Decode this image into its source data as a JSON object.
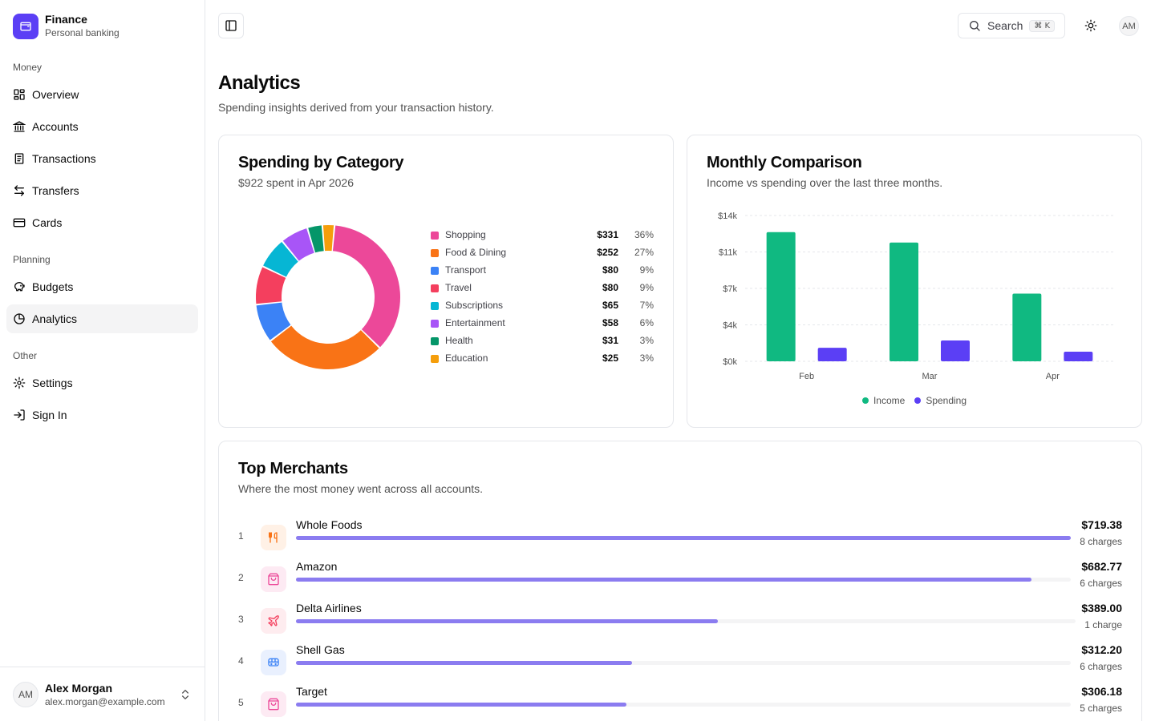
{
  "brand": {
    "name": "Finance",
    "subtitle": "Personal banking"
  },
  "sidebar": {
    "groups": [
      {
        "label": "Money",
        "items": [
          {
            "label": "Overview",
            "icon": "grid-icon"
          },
          {
            "label": "Accounts",
            "icon": "bank-icon"
          },
          {
            "label": "Transactions",
            "icon": "receipt-icon"
          },
          {
            "label": "Transfers",
            "icon": "arrows-left-right-icon"
          },
          {
            "label": "Cards",
            "icon": "credit-card-icon"
          }
        ]
      },
      {
        "label": "Planning",
        "items": [
          {
            "label": "Budgets",
            "icon": "piggy-bank-icon"
          },
          {
            "label": "Analytics",
            "icon": "pie-chart-icon",
            "active": true
          }
        ]
      },
      {
        "label": "Other",
        "items": [
          {
            "label": "Settings",
            "icon": "gear-icon"
          },
          {
            "label": "Sign In",
            "icon": "sign-in-icon"
          }
        ]
      }
    ]
  },
  "user": {
    "initials": "AM",
    "name": "Alex Morgan",
    "email": "alex.morgan@example.com"
  },
  "topbar": {
    "search_label": "Search",
    "search_shortcut": "⌘ K",
    "avatar_initials": "AM"
  },
  "page": {
    "title": "Analytics",
    "subtitle": "Spending insights derived from your transaction history."
  },
  "spending_card": {
    "title": "Spending by Category",
    "subtitle": "$922 spent in Apr 2026"
  },
  "monthly_card": {
    "title": "Monthly Comparison",
    "subtitle": "Income vs spending over the last three months."
  },
  "merchants_card": {
    "title": "Top Merchants",
    "subtitle": "Where the most money went across all accounts.",
    "rows": [
      {
        "rank": "1",
        "name": "Whole Foods",
        "amount": "$719.38",
        "count": "8 charges",
        "share": 1.0,
        "icon": "utensils-icon",
        "icon_color": "#f97316",
        "icon_bg": "#fff1e6"
      },
      {
        "rank": "2",
        "name": "Amazon",
        "amount": "$682.77",
        "count": "6 charges",
        "share": 0.949,
        "icon": "shopping-bag-icon",
        "icon_color": "#ec4899",
        "icon_bg": "#fdeaf3"
      },
      {
        "rank": "3",
        "name": "Delta Airlines",
        "amount": "$389.00",
        "count": "1 charge",
        "share": 0.541,
        "icon": "plane-icon",
        "icon_color": "#f43f5e",
        "icon_bg": "#feecef"
      },
      {
        "rank": "4",
        "name": "Shell Gas",
        "amount": "$312.20",
        "count": "6 charges",
        "share": 0.434,
        "icon": "bus-icon",
        "icon_color": "#3b82f6",
        "icon_bg": "#e9f0fe"
      },
      {
        "rank": "5",
        "name": "Target",
        "amount": "$306.18",
        "count": "5 charges",
        "share": 0.426,
        "icon": "shopping-bag-icon",
        "icon_color": "#ec4899",
        "icon_bg": "#fdeaf3"
      }
    ]
  },
  "chart_data": [
    {
      "type": "pie",
      "categories": [
        "Shopping",
        "Food & Dining",
        "Transport",
        "Travel",
        "Subscriptions",
        "Entertainment",
        "Health",
        "Education"
      ],
      "values": [
        331,
        252,
        80,
        80,
        65,
        58,
        31,
        25
      ],
      "amount_labels": [
        "$331",
        "$252",
        "$80",
        "$80",
        "$65",
        "$58",
        "$31",
        "$25"
      ],
      "percent_labels": [
        "36%",
        "27%",
        "9%",
        "9%",
        "7%",
        "6%",
        "3%",
        "3%"
      ],
      "colors": [
        "#ec4899",
        "#f97316",
        "#3b82f6",
        "#f43f5e",
        "#06b6d4",
        "#a855f7",
        "#059669",
        "#f59e0b"
      ],
      "legend": "right"
    },
    {
      "type": "bar",
      "categories": [
        "Feb",
        "Mar",
        "Apr"
      ],
      "series": [
        {
          "name": "Income",
          "values": [
            12400,
            11400,
            6500
          ],
          "color": "#10b981"
        },
        {
          "name": "Spending",
          "values": [
            1300,
            2000,
            922
          ],
          "color": "#5b3ff5"
        }
      ],
      "ytick_labels": [
        "$0k",
        "$4k",
        "$7k",
        "$11k",
        "$14k"
      ],
      "ylim": [
        0,
        14000
      ],
      "grid": true,
      "legend": "bottom"
    }
  ]
}
